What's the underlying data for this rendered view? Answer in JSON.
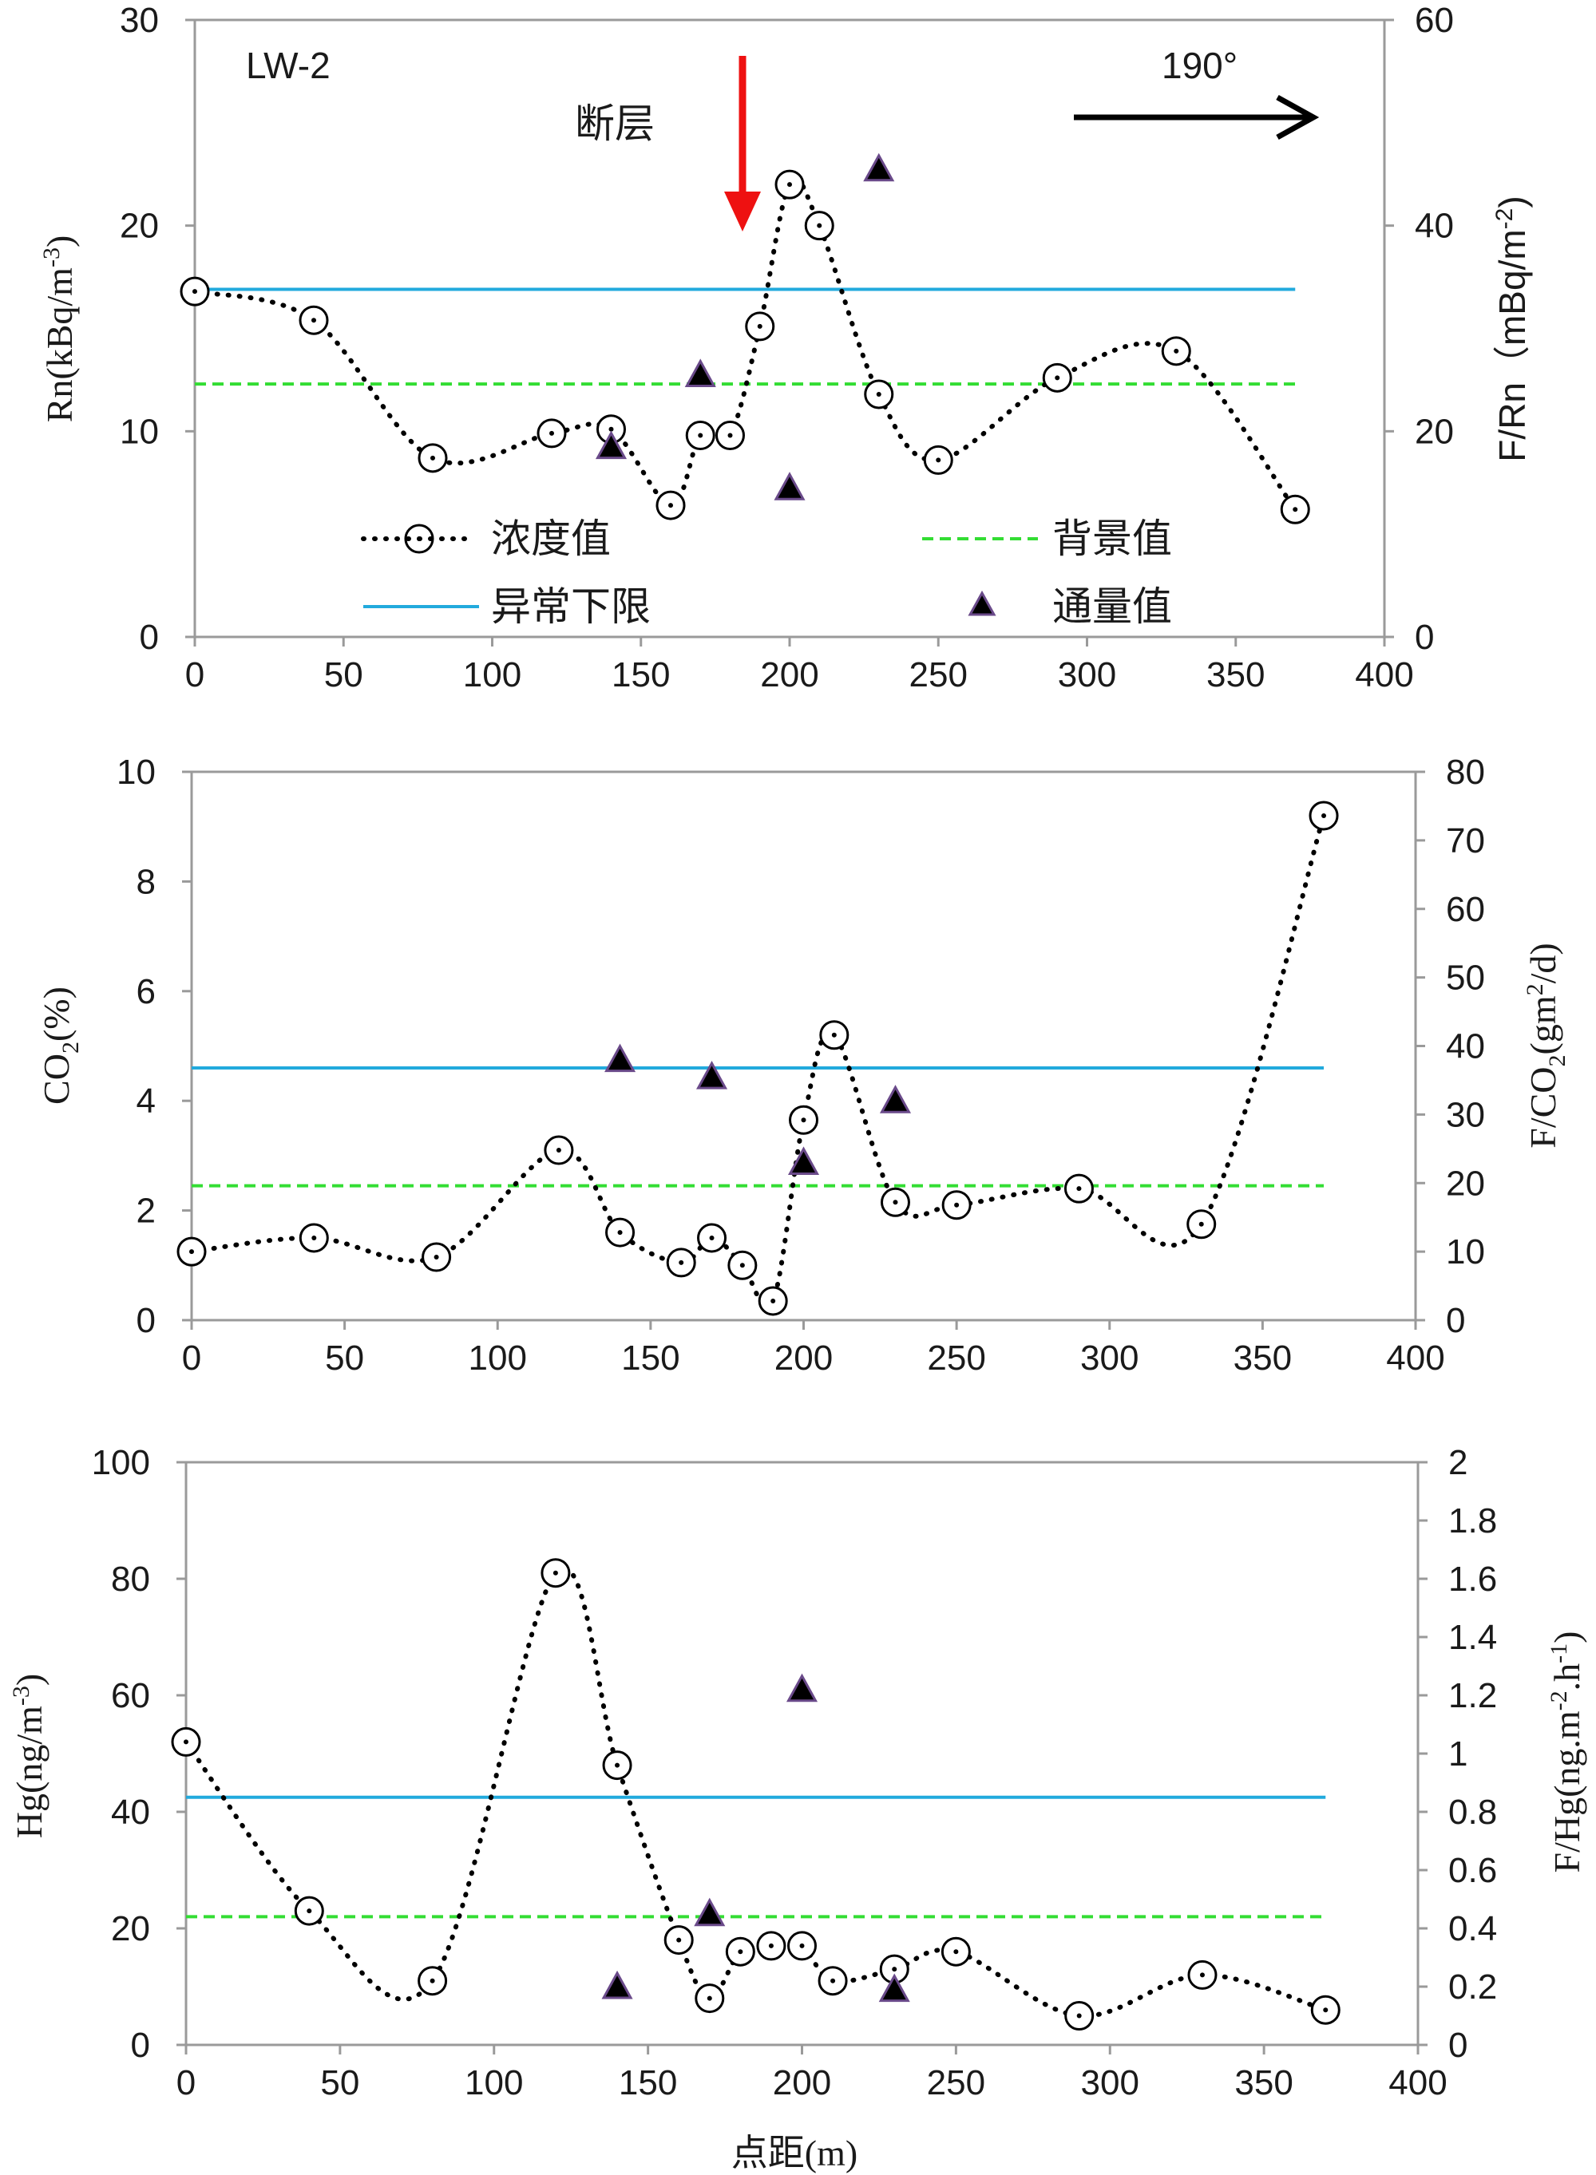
{
  "chart_data": [
    {
      "type": "line",
      "id": "rn",
      "title": "LW-2",
      "annotation_fault": "断层",
      "annotation_direction": "190°",
      "ylabel_left": "Rn(kBq/m-3)",
      "ylabel_right": "F/Rn（mBq/m-2)",
      "xlim": [
        0,
        400
      ],
      "ylim_left": [
        0,
        30
      ],
      "ylim_right": [
        0,
        60
      ],
      "xticks": [
        "0",
        "50",
        "100",
        "150",
        "200",
        "250",
        "300",
        "350",
        "400"
      ],
      "yticks_left": [
        "0",
        "10",
        "20",
        "30"
      ],
      "yticks_right": [
        "0",
        "20",
        "40",
        "60"
      ],
      "series": [
        {
          "name": "浓度值",
          "axis": "left",
          "x": [
            0,
            40,
            80,
            120,
            140,
            160,
            170,
            180,
            190,
            200,
            210,
            230,
            250,
            290,
            330,
            370
          ],
          "y": [
            16.8,
            15.4,
            8.7,
            9.9,
            10.1,
            6.4,
            9.8,
            9.8,
            15.1,
            22.0,
            20.0,
            11.8,
            8.6,
            12.6,
            13.9,
            6.2
          ]
        },
        {
          "name": "背景值",
          "axis": "left",
          "value": 12.3,
          "x_range": [
            0,
            370
          ]
        },
        {
          "name": "异常下限",
          "axis": "left",
          "value": 16.9,
          "x_range": [
            0,
            370
          ]
        },
        {
          "name": "通量值",
          "axis": "right",
          "x": [
            140,
            170,
            200,
            230
          ],
          "y": [
            18.5,
            25.5,
            14.5,
            45.5
          ]
        }
      ],
      "legend": [
        "浓度值",
        "背景值",
        "异常下限",
        "通量值"
      ]
    },
    {
      "type": "line",
      "id": "co2",
      "ylabel_left": "CO2(%)",
      "ylabel_right": "F/CO2(gm2/d)",
      "xlim": [
        0,
        400
      ],
      "ylim_left": [
        0,
        10
      ],
      "ylim_right": [
        0,
        80
      ],
      "xticks": [
        "0",
        "50",
        "100",
        "150",
        "200",
        "250",
        "300",
        "350",
        "400"
      ],
      "yticks_left": [
        "0",
        "2",
        "4",
        "6",
        "8",
        "10"
      ],
      "yticks_right": [
        "0",
        "10",
        "20",
        "30",
        "40",
        "50",
        "60",
        "70",
        "80"
      ],
      "series": [
        {
          "name": "浓度值",
          "axis": "left",
          "x": [
            0,
            40,
            80,
            120,
            140,
            160,
            170,
            180,
            190,
            200,
            210,
            230,
            250,
            290,
            330,
            370
          ],
          "y": [
            1.25,
            1.5,
            1.15,
            3.1,
            1.6,
            1.05,
            1.5,
            1.0,
            0.35,
            3.65,
            5.2,
            2.15,
            2.1,
            2.4,
            1.75,
            9.2
          ]
        },
        {
          "name": "背景值",
          "axis": "left",
          "value": 2.45,
          "x_range": [
            0,
            370
          ]
        },
        {
          "name": "异常下限",
          "axis": "left",
          "value": 4.6,
          "x_range": [
            0,
            370
          ]
        },
        {
          "name": "通量值",
          "axis": "right",
          "x": [
            140,
            170,
            200,
            230
          ],
          "y": [
            38,
            35.5,
            23,
            32
          ]
        }
      ]
    },
    {
      "type": "line",
      "id": "hg",
      "xlabel": "点距(m)",
      "ylabel_left": "Hg(ng/m-3)",
      "ylabel_right": "F/Hg(ng.m-2.h-1)",
      "xlim": [
        0,
        400
      ],
      "ylim_left": [
        0,
        100
      ],
      "ylim_right": [
        0,
        2
      ],
      "xticks": [
        "0",
        "50",
        "100",
        "150",
        "200",
        "250",
        "300",
        "350",
        "400"
      ],
      "yticks_left": [
        "0",
        "20",
        "40",
        "60",
        "80",
        "100"
      ],
      "yticks_right": [
        "0",
        "0.2",
        "0.4",
        "0.6",
        "0.8",
        "1",
        "1.2",
        "1.4",
        "1.6",
        "1.8",
        "2"
      ],
      "series": [
        {
          "name": "浓度值",
          "axis": "left",
          "x": [
            0,
            40,
            80,
            120,
            140,
            160,
            170,
            180,
            190,
            200,
            210,
            230,
            250,
            290,
            330,
            370
          ],
          "y": [
            52,
            23,
            11,
            81,
            48,
            18,
            8,
            16,
            17,
            17,
            11,
            13,
            16,
            5,
            12,
            6
          ]
        },
        {
          "name": "背景值",
          "axis": "left",
          "value": 22,
          "x_range": [
            0,
            370
          ]
        },
        {
          "name": "异常下限",
          "axis": "left",
          "value": 42.5,
          "x_range": [
            0,
            370
          ]
        },
        {
          "name": "通量值",
          "axis": "right",
          "x": [
            140,
            170,
            200,
            230
          ],
          "y": [
            0.2,
            0.45,
            1.22,
            0.19
          ]
        }
      ]
    }
  ],
  "styles": {
    "concentration_color": "#000000",
    "background_color": "#33dd33",
    "anomaly_color": "#22aadd",
    "flux_fill": "#000000",
    "flux_stroke": "#6a4a8a",
    "arrow_fault": "#ee1111",
    "axis_color": "#9a9a9a"
  }
}
